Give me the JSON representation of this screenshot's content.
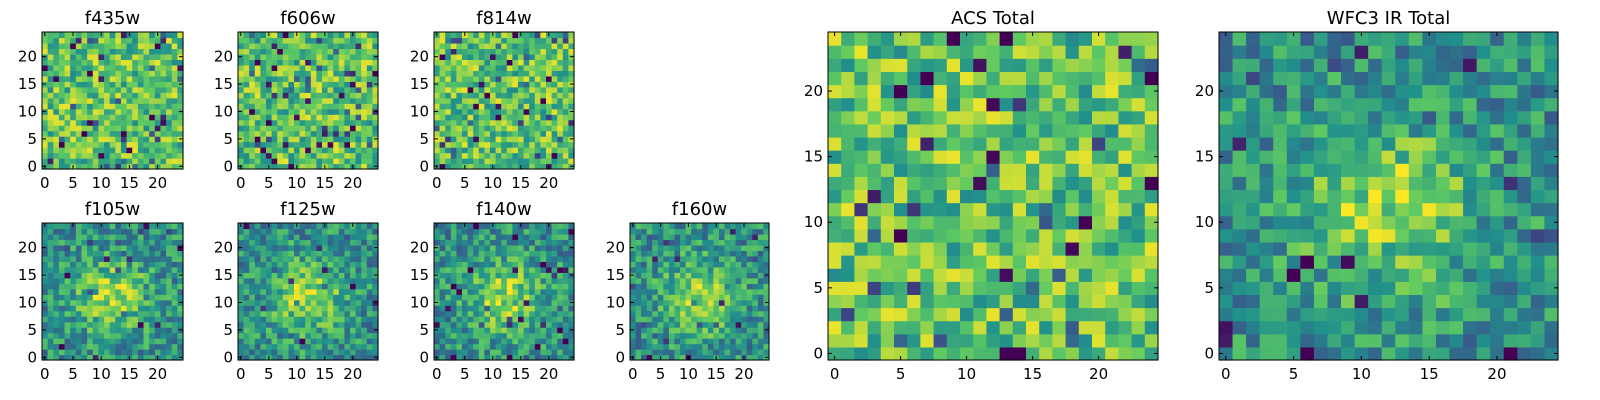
{
  "chart_data": [
    {
      "type": "heatmap",
      "title": "f435w",
      "xlim": [
        0,
        25
      ],
      "ylim": [
        0,
        25
      ],
      "xticks": [
        0,
        5,
        10,
        15,
        20
      ],
      "yticks": [
        0,
        5,
        10,
        15,
        20
      ],
      "pattern": "noise",
      "seed": 11
    },
    {
      "type": "heatmap",
      "title": "f606w",
      "xlim": [
        0,
        25
      ],
      "ylim": [
        0,
        25
      ],
      "xticks": [
        0,
        5,
        10,
        15,
        20
      ],
      "yticks": [
        0,
        5,
        10,
        15,
        20
      ],
      "pattern": "noise",
      "seed": 23
    },
    {
      "type": "heatmap",
      "title": "f814w",
      "xlim": [
        0,
        25
      ],
      "ylim": [
        0,
        25
      ],
      "xticks": [
        0,
        5,
        10,
        15,
        20
      ],
      "yticks": [
        0,
        5,
        10,
        15,
        20
      ],
      "pattern": "noise",
      "seed": 37
    },
    {
      "type": "heatmap",
      "title": "f105w",
      "xlim": [
        0,
        25
      ],
      "ylim": [
        0,
        25
      ],
      "xticks": [
        0,
        5,
        10,
        15,
        20
      ],
      "yticks": [
        0,
        5,
        10,
        15,
        20
      ],
      "pattern": "blob",
      "seed": 41
    },
    {
      "type": "heatmap",
      "title": "f125w",
      "xlim": [
        0,
        25
      ],
      "ylim": [
        0,
        25
      ],
      "xticks": [
        0,
        5,
        10,
        15,
        20
      ],
      "yticks": [
        0,
        5,
        10,
        15,
        20
      ],
      "pattern": "blob",
      "seed": 53
    },
    {
      "type": "heatmap",
      "title": "f140w",
      "xlim": [
        0,
        25
      ],
      "ylim": [
        0,
        25
      ],
      "xticks": [
        0,
        5,
        10,
        15,
        20
      ],
      "yticks": [
        0,
        5,
        10,
        15,
        20
      ],
      "pattern": "blob",
      "seed": 67
    },
    {
      "type": "heatmap",
      "title": "f160w",
      "xlim": [
        0,
        25
      ],
      "ylim": [
        0,
        25
      ],
      "xticks": [
        0,
        5,
        10,
        15,
        20
      ],
      "yticks": [
        0,
        5,
        10,
        15,
        20
      ],
      "pattern": "blob",
      "seed": 79
    },
    {
      "type": "heatmap",
      "title": "ACS Total",
      "xlim": [
        0,
        25
      ],
      "ylim": [
        0,
        25
      ],
      "xticks": [
        0,
        5,
        10,
        15,
        20
      ],
      "yticks": [
        0,
        5,
        10,
        15,
        20
      ],
      "pattern": "noise",
      "seed": 97
    },
    {
      "type": "heatmap",
      "title": "WFC3 IR Total",
      "xlim": [
        0,
        25
      ],
      "ylim": [
        0,
        25
      ],
      "xticks": [
        0,
        5,
        10,
        15,
        20
      ],
      "yticks": [
        0,
        5,
        10,
        15,
        20
      ],
      "pattern": "blob",
      "seed": 101
    }
  ],
  "colormap": [
    "#440154",
    "#3b528b",
    "#21918c",
    "#5ec962",
    "#fde725"
  ]
}
